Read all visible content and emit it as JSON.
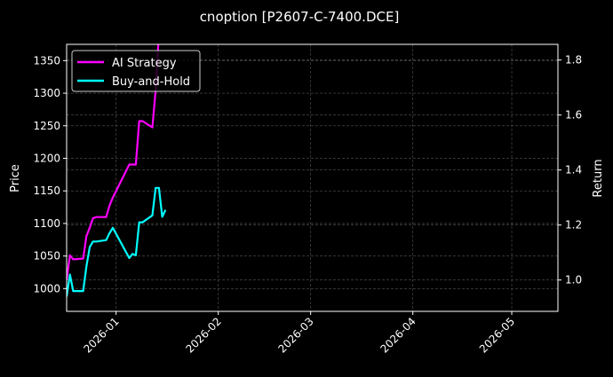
{
  "chart_data": {
    "type": "line",
    "title": "cnoption [P2607-C-7400.DCE]",
    "ylabel_left": "Price",
    "ylabel_right": "Return",
    "xlim": [
      "2025-12-17",
      "2026-05-15"
    ],
    "ylim_left": [
      965,
      1375
    ],
    "ylim_right": [
      0.886,
      1.857
    ],
    "x_ticks": [
      "2026-01",
      "2026-02",
      "2026-03",
      "2026-04",
      "2026-05"
    ],
    "x_tick_dates": [
      "2026-01-01",
      "2026-02-01",
      "2026-03-01",
      "2026-04-01",
      "2026-05-01"
    ],
    "y_ticks_left": [
      1000,
      1050,
      1100,
      1150,
      1200,
      1250,
      1300,
      1350
    ],
    "y_ticks_right": [
      1.0,
      1.2,
      1.4,
      1.6,
      1.8
    ],
    "grid": true,
    "legend_placement": "top-left",
    "x": [
      "2025-12-17",
      "2025-12-18",
      "2025-12-19",
      "2025-12-22",
      "2025-12-23",
      "2025-12-24",
      "2025-12-25",
      "2025-12-26",
      "2025-12-29",
      "2025-12-30",
      "2025-12-31",
      "2026-01-05",
      "2026-01-06",
      "2026-01-07",
      "2026-01-08",
      "2026-01-09",
      "2026-01-12",
      "2026-01-13",
      "2026-01-14",
      "2026-01-15",
      "2026-01-16"
    ],
    "series": [
      {
        "name": "AI Strategy",
        "axis": "right",
        "color": "#ff00ff",
        "values": [
          1.0,
          1.09,
          1.075,
          1.078,
          1.16,
          1.19,
          1.225,
          1.229,
          1.229,
          1.27,
          1.3,
          1.42,
          1.42,
          1.42,
          1.578,
          1.578,
          1.555,
          1.69,
          1.9,
          null,
          null
        ]
      },
      {
        "name": "Buy-and-Hold",
        "axis": "right",
        "color": "#00ffff",
        "values": [
          0.94,
          1.02,
          0.96,
          0.96,
          1.05,
          1.12,
          1.14,
          1.14,
          1.145,
          1.17,
          1.19,
          1.08,
          1.095,
          1.09,
          1.21,
          1.21,
          1.235,
          1.335,
          1.335,
          1.23,
          1.255
        ]
      }
    ]
  }
}
